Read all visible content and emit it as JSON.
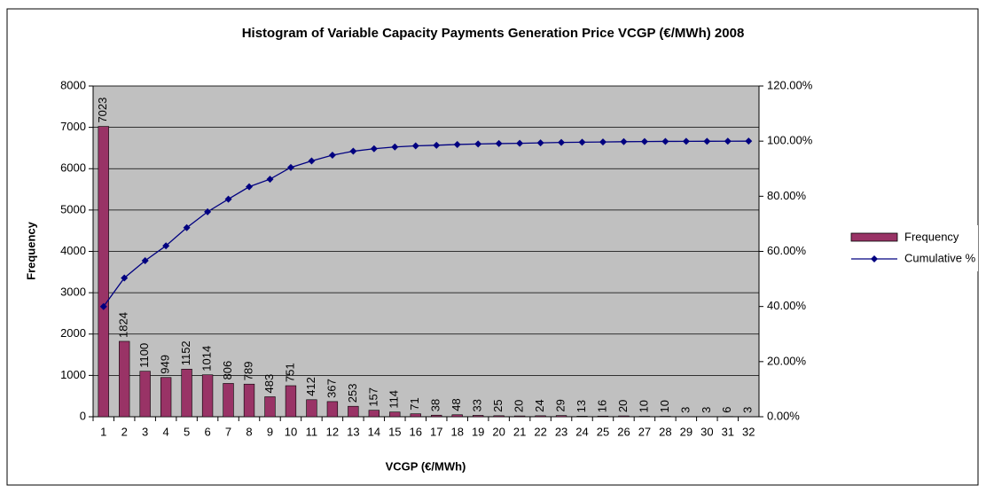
{
  "chart_data": {
    "type": "bar",
    "title": "Histogram of Variable Capacity Payments Generation Price VCGP (€/MWh) 2008",
    "x_label": "VCGP (€/MWh)",
    "y_label": "Frequency",
    "categories": [
      "1",
      "2",
      "3",
      "4",
      "5",
      "6",
      "7",
      "8",
      "9",
      "10",
      "11",
      "12",
      "13",
      "14",
      "15",
      "16",
      "17",
      "18",
      "19",
      "20",
      "21",
      "22",
      "23",
      "24",
      "25",
      "26",
      "27",
      "28",
      "29",
      "30",
      "31",
      "32"
    ],
    "series": [
      {
        "name": "Frequency",
        "type": "bar",
        "color": "#993366",
        "values": [
          7023,
          1824,
          1100,
          949,
          1152,
          1014,
          806,
          789,
          483,
          751,
          412,
          367,
          253,
          157,
          114,
          71,
          38,
          48,
          33,
          25,
          20,
          24,
          29,
          13,
          16,
          20,
          10,
          10,
          3,
          3,
          6,
          3
        ]
      },
      {
        "name": "Cumulative %",
        "type": "line",
        "axis": "y2",
        "color": "#000080",
        "values": [
          39.98,
          50.36,
          56.63,
          62.03,
          68.59,
          74.36,
          78.95,
          83.44,
          86.19,
          90.46,
          92.81,
          94.9,
          96.34,
          97.23,
          97.88,
          98.29,
          98.5,
          98.78,
          98.96,
          99.11,
          99.22,
          99.36,
          99.52,
          99.6,
          99.69,
          99.8,
          99.86,
          99.91,
          99.93,
          99.95,
          99.98,
          100
        ]
      }
    ],
    "ylim": [
      0,
      8000
    ],
    "yticks": [
      0,
      1000,
      2000,
      3000,
      4000,
      5000,
      6000,
      7000,
      8000
    ],
    "y2lim": [
      0,
      120
    ],
    "y2ticks": [
      {
        "value": 0,
        "label": "0.00%"
      },
      {
        "value": 20,
        "label": "20.00%"
      },
      {
        "value": 40,
        "label": "40.00%"
      },
      {
        "value": 60,
        "label": "60.00%"
      },
      {
        "value": 80,
        "label": "80.00%"
      },
      {
        "value": 100,
        "label": "100.00%"
      },
      {
        "value": 120,
        "label": "120.00%"
      }
    ],
    "grid": true,
    "legend": "right",
    "plot_background": "#c0c0c0"
  }
}
